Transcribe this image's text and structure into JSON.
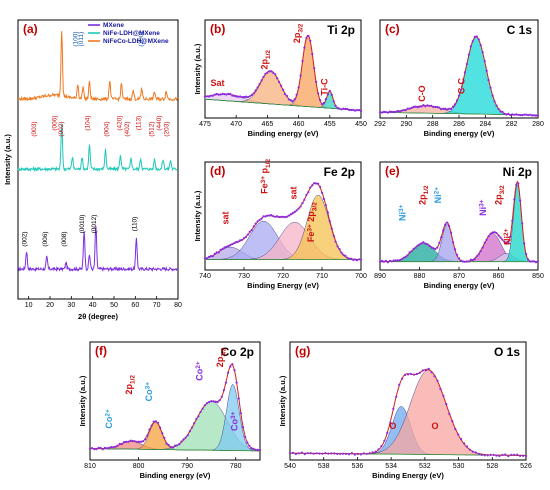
{
  "chart_data": [
    {
      "id": "a",
      "type": "line",
      "panel_label": "(a)",
      "xlabel": "2θ (degree)",
      "ylabel": "Intensity (a.u.)",
      "xlim": [
        5,
        80
      ],
      "xticks": [
        10,
        20,
        30,
        40,
        50,
        60,
        70,
        80
      ],
      "legend_position": "top-right",
      "series": [
        {
          "name": "MXene",
          "color": "#7b2fe0",
          "peaks": [
            [
              9,
              1.5
            ],
            [
              18.5,
              1.0
            ],
            [
              27.5,
              0.5
            ],
            [
              36,
              3.2
            ],
            [
              38.5,
              1.2
            ],
            [
              41.5,
              3.6
            ],
            [
              60.5,
              2.6
            ]
          ],
          "labels": [
            {
              "text": "(002)",
              "x": 9
            },
            {
              "text": "(006)",
              "x": 18.5
            },
            {
              "text": "(008)",
              "x": 27.5
            },
            {
              "text": "(0010)",
              "x": 36
            },
            {
              "text": "(0012)",
              "x": 41.5
            },
            {
              "text": "(110)",
              "x": 60.5
            }
          ]
        },
        {
          "name": "NiFe-LDH@MXene",
          "color": "#1ec8b8",
          "peaks": [
            [
              25.5,
              3.8
            ],
            [
              30.5,
              1.0
            ],
            [
              35,
              1.0
            ],
            [
              38.5,
              2.0
            ],
            [
              46,
              1.6
            ],
            [
              53,
              1.2
            ],
            [
              58,
              0.9
            ],
            [
              62.5,
              0.9
            ],
            [
              69,
              0.8
            ],
            [
              73,
              0.8
            ],
            [
              76.5,
              0.7
            ]
          ],
          "labels": [
            {
              "text": "(003)",
              "x": 13.5
            },
            {
              "text": "(006)",
              "x": 23
            },
            {
              "text": "(002)",
              "x": 26
            },
            {
              "text": "(104)",
              "x": 38.5
            },
            {
              "text": "(004)",
              "x": 47.5
            },
            {
              "text": "(420)",
              "x": 53.5
            },
            {
              "text": "(402)",
              "x": 57
            },
            {
              "text": "(113)",
              "x": 62.5
            },
            {
              "text": "(512)",
              "x": 68.5
            },
            {
              "text": "(440)",
              "x": 72
            },
            {
              "text": "(203)",
              "x": 75.5
            }
          ]
        },
        {
          "name": "NiFeCo-LDH@MXene",
          "color": "#f07820",
          "peaks": [
            [
              25.5,
              5.5
            ],
            [
              33,
              1.2
            ],
            [
              35.5,
              1.0
            ],
            [
              38.5,
              1.4
            ],
            [
              48,
              1.5
            ],
            [
              53.5,
              1.3
            ],
            [
              59,
              0.7
            ],
            [
              63,
              0.9
            ],
            [
              69,
              0.6
            ],
            [
              74.5,
              0.7
            ]
          ],
          "labels": [
            {
              "text": "(100)",
              "x": 33
            },
            {
              "text": "(011)",
              "x": 35.5
            },
            {
              "text": "(200)",
              "x": 63.5
            }
          ]
        }
      ]
    },
    {
      "id": "b",
      "type": "line",
      "panel_label": "(b)",
      "title": "Ti 2p",
      "xlabel": "Binding energy (eV)",
      "ylabel": "Intensity (a.u.)",
      "xlim": [
        475,
        450
      ],
      "xticks": [
        475,
        470,
        465,
        460,
        455,
        450
      ],
      "ylim": [
        0,
        1.0
      ],
      "baseline": [
        0.2,
        0.08
      ],
      "components": [
        {
          "label": "Sat",
          "center": 471.5,
          "amp": 0.07,
          "width": 2.6,
          "color": "#e8c9ee"
        },
        {
          "label": "2p1/2",
          "center": 464.5,
          "amp": 0.35,
          "width": 1.6,
          "color": "#f5b27f"
        },
        {
          "label": "2p3/2",
          "center": 458.5,
          "amp": 0.76,
          "width": 0.9,
          "color": "#f7a35c"
        },
        {
          "label": "Ti-C",
          "center": 455.0,
          "amp": 0.18,
          "width": 0.5,
          "color": "#39d3c2"
        }
      ],
      "annotations": [
        {
          "text": "Sat",
          "x": 473,
          "y": 0.34,
          "color": "#d01010"
        },
        {
          "text": "2p1/2",
          "x": 465,
          "y": 0.62,
          "color": "#d01010",
          "rot": -90
        },
        {
          "text": "2p3/2",
          "x": 459.8,
          "y": 0.9,
          "color": "#d01010",
          "rot": -90
        },
        {
          "text": "Ti-C",
          "x": 455.4,
          "y": 0.33,
          "color": "#d01010",
          "rot": -90
        }
      ]
    },
    {
      "id": "c",
      "type": "line",
      "panel_label": "(c)",
      "title": "C 1s",
      "xlabel": "Binding energy (eV)",
      "ylabel": "",
      "xlim": [
        292,
        280
      ],
      "xticks": [
        292,
        290,
        288,
        286,
        284,
        282,
        280
      ],
      "ylim": [
        0,
        1.0
      ],
      "baseline": [
        0.06,
        0.03
      ],
      "components": [
        {
          "label": "C-O",
          "center": 288.5,
          "amp": 0.08,
          "width": 1.2,
          "color": "#f5b3a0"
        },
        {
          "label": "C-C",
          "center": 284.7,
          "amp": 0.82,
          "width": 0.75,
          "color": "#19d8d8"
        }
      ],
      "annotations": [
        {
          "text": "C-O",
          "x": 288.6,
          "y": 0.26,
          "color": "#d01010",
          "rot": -90
        },
        {
          "text": "C-C",
          "x": 285.6,
          "y": 0.34,
          "color": "#d01010",
          "rot": -90
        }
      ]
    },
    {
      "id": "d",
      "type": "line",
      "panel_label": "(d)",
      "title": "Fe 2p",
      "xlabel": "Binding Energy (eV)",
      "ylabel": "Intensity (a.u.)",
      "xlim": [
        740,
        700
      ],
      "xticks": [
        740,
        730,
        720,
        710,
        700
      ],
      "ylim": [
        0,
        1.0
      ],
      "baseline": [
        0.1,
        0.1
      ],
      "components": [
        {
          "label": "sat",
          "center": 733.5,
          "amp": 0.12,
          "width": 3.0,
          "color": "#b6a9ea"
        },
        {
          "label": "Fe3+ p1/2",
          "center": 725,
          "amp": 0.37,
          "width": 3.6,
          "color": "#a8aaf0"
        },
        {
          "label": "sat",
          "center": 717,
          "amp": 0.36,
          "width": 3.8,
          "color": "#f6b3c6"
        },
        {
          "label": "Fe3+ 2p3/2",
          "center": 711,
          "amp": 0.62,
          "width": 2.8,
          "color": "#f6c250"
        }
      ],
      "annotations": [
        {
          "text": "sat",
          "x": 734,
          "y": 0.5,
          "color": "#d01010",
          "rot": -90
        },
        {
          "text": "Fe3+ p1/2",
          "x": 724,
          "y": 0.9,
          "color": "#d01010",
          "rot": -90
        },
        {
          "text": "sat",
          "x": 716.5,
          "y": 0.74,
          "color": "#d01010",
          "rot": -90
        },
        {
          "text": "Fe3+ 2p3/2",
          "x": 712,
          "y": 0.46,
          "color": "#d01010",
          "rot": -90
        }
      ]
    },
    {
      "id": "e",
      "type": "line",
      "panel_label": "(e)",
      "title": "Ni 2p",
      "xlabel": "Binding energy (eV)",
      "ylabel": "",
      "xlim": [
        890,
        850
      ],
      "xticks": [
        890,
        880,
        870,
        860,
        850
      ],
      "ylim": [
        0,
        1.0
      ],
      "baseline": [
        0.08,
        0.08
      ],
      "components": [
        {
          "label": "sat",
          "center": 879,
          "amp": 0.18,
          "width": 2.8,
          "color": "#1aa89a"
        },
        {
          "label": "Ni2+",
          "center": 873,
          "amp": 0.36,
          "width": 1.3,
          "color": "#a4a2ee"
        },
        {
          "label": "sat",
          "center": 861.5,
          "amp": 0.27,
          "width": 2.2,
          "color": "#cf6ec8"
        },
        {
          "label": "Ni3+",
          "center": 858,
          "amp": 0.08,
          "width": 1.8,
          "color": "#d8ccee"
        },
        {
          "label": "Ni2+",
          "center": 855.2,
          "amp": 0.74,
          "width": 1.0,
          "color": "#18d5c8"
        }
      ],
      "annotations": [
        {
          "text": "Ni3+",
          "x": 883.5,
          "y": 0.55,
          "color": "#2c9de0",
          "rot": -90
        },
        {
          "text": "2p1/2",
          "x": 878.5,
          "y": 0.72,
          "color": "#d01010",
          "rot": -90
        },
        {
          "text": "Ni2+",
          "x": 874.5,
          "y": 0.72,
          "color": "#2c9de0",
          "rot": -90
        },
        {
          "text": "Ni3+",
          "x": 863.2,
          "y": 0.6,
          "color": "#8a2be2",
          "rot": -90
        },
        {
          "text": "2p3/2",
          "x": 859.3,
          "y": 0.72,
          "color": "#d01010",
          "rot": -90
        },
        {
          "text": "Ni2+",
          "x": 857.0,
          "y": 0.32,
          "color": "#d01010",
          "rot": -90
        }
      ]
    },
    {
      "id": "f",
      "type": "line",
      "panel_label": "(f)",
      "title": "Co 2p",
      "xlabel": "Binding energy (eV)",
      "ylabel": "Intensity (a.u.)",
      "xlim": [
        810,
        775
      ],
      "xticks": [
        810,
        800,
        790,
        780
      ],
      "ylim": [
        0,
        1.0
      ],
      "baseline": [
        0.1,
        0.08
      ],
      "components": [
        {
          "label": "Co2+",
          "center": 801.5,
          "amp": 0.07,
          "width": 2.2,
          "color": "#f08a7e"
        },
        {
          "label": "Co3+",
          "center": 796.5,
          "amp": 0.24,
          "width": 1.3,
          "color": "#f3a23e"
        },
        {
          "label": "Co2+",
          "center": 785,
          "amp": 0.43,
          "width": 3.2,
          "color": "#9fe0b4"
        },
        {
          "label": "Co3+",
          "center": 780.6,
          "amp": 0.58,
          "width": 1.3,
          "color": "#7fc9f0"
        }
      ],
      "annotations": [
        {
          "text": "Co2+",
          "x": 805.5,
          "y": 0.36,
          "color": "#2c9de0",
          "rot": -90
        },
        {
          "text": "2p1/2",
          "x": 801.3,
          "y": 0.66,
          "color": "#d01010",
          "rot": -90
        },
        {
          "text": "Co3+",
          "x": 797.2,
          "y": 0.6,
          "color": "#2c9de0",
          "rot": -90
        },
        {
          "text": "Co2+",
          "x": 786.8,
          "y": 0.78,
          "color": "#8a2be2",
          "rot": -90
        },
        {
          "text": "2p3/2",
          "x": 782.6,
          "y": 0.9,
          "color": "#d01010",
          "rot": -90
        },
        {
          "text": "Co3+",
          "x": 779.6,
          "y": 0.34,
          "color": "#8a2be2",
          "rot": -90
        }
      ]
    },
    {
      "id": "g",
      "type": "line",
      "panel_label": "(g)",
      "title": "O 1s",
      "xlabel": "Binding Energy (eV)",
      "ylabel": "Intensity (a.u.)",
      "xlim": [
        540,
        526
      ],
      "xticks": [
        540,
        538,
        536,
        534,
        532,
        530,
        528,
        526
      ],
      "ylim": [
        0,
        1.0
      ],
      "baseline": [
        0.06,
        0.04
      ],
      "components": [
        {
          "label": "O",
          "center": 533.4,
          "amp": 0.42,
          "width": 0.55,
          "color": "#6fa8f0"
        },
        {
          "label": "O",
          "center": 531.8,
          "amp": 0.74,
          "width": 1.05,
          "color": "#f7a6a0"
        }
      ],
      "annotations": [
        {
          "text": "O",
          "x": 533.9,
          "y": 0.27,
          "color": "#d01010"
        },
        {
          "text": "O",
          "x": 531.4,
          "y": 0.27,
          "color": "#d01010"
        }
      ]
    }
  ]
}
